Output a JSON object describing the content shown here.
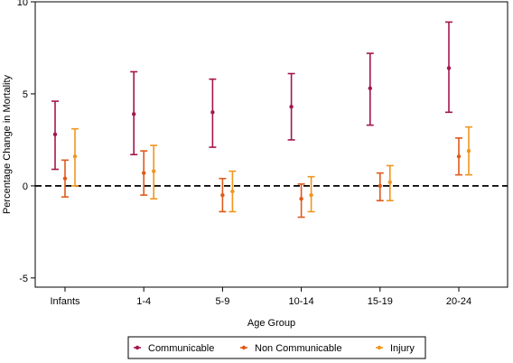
{
  "chart_data": {
    "type": "errorbar",
    "categories": [
      "Infants",
      "1-4",
      "5-9",
      "10-14",
      "15-19",
      "20-24"
    ],
    "xlabel": "Age Group",
    "ylabel": "Percentage Change in Mortality",
    "ylim": [
      -5.5,
      10
    ],
    "yticks": [
      -5,
      0,
      5,
      10
    ],
    "reference_line": {
      "y": 0,
      "style": "dashed"
    },
    "grid": false,
    "legend_position": "bottom",
    "series": [
      {
        "name": "Communicable",
        "color": "#a3164d",
        "estimate": [
          2.8,
          3.9,
          4.0,
          4.3,
          5.3,
          6.4
        ],
        "lower": [
          0.9,
          1.7,
          2.1,
          2.5,
          3.3,
          4.0
        ],
        "upper": [
          4.6,
          6.2,
          5.8,
          6.1,
          7.2,
          8.9
        ]
      },
      {
        "name": "Non Communicable",
        "color": "#e05a1b",
        "estimate": [
          0.4,
          0.7,
          -0.5,
          -0.7,
          0.0,
          1.6
        ],
        "lower": [
          -0.6,
          -0.5,
          -1.4,
          -1.7,
          -0.8,
          0.6
        ],
        "upper": [
          1.4,
          1.9,
          0.4,
          0.1,
          0.7,
          2.6
        ]
      },
      {
        "name": "Injury",
        "color": "#f0961f",
        "estimate": [
          1.6,
          0.8,
          -0.3,
          -0.5,
          0.2,
          1.9
        ],
        "lower": [
          0.0,
          -0.7,
          -1.4,
          -1.4,
          -0.8,
          0.6
        ],
        "upper": [
          3.1,
          2.2,
          0.8,
          0.5,
          1.1,
          3.2
        ]
      }
    ]
  }
}
